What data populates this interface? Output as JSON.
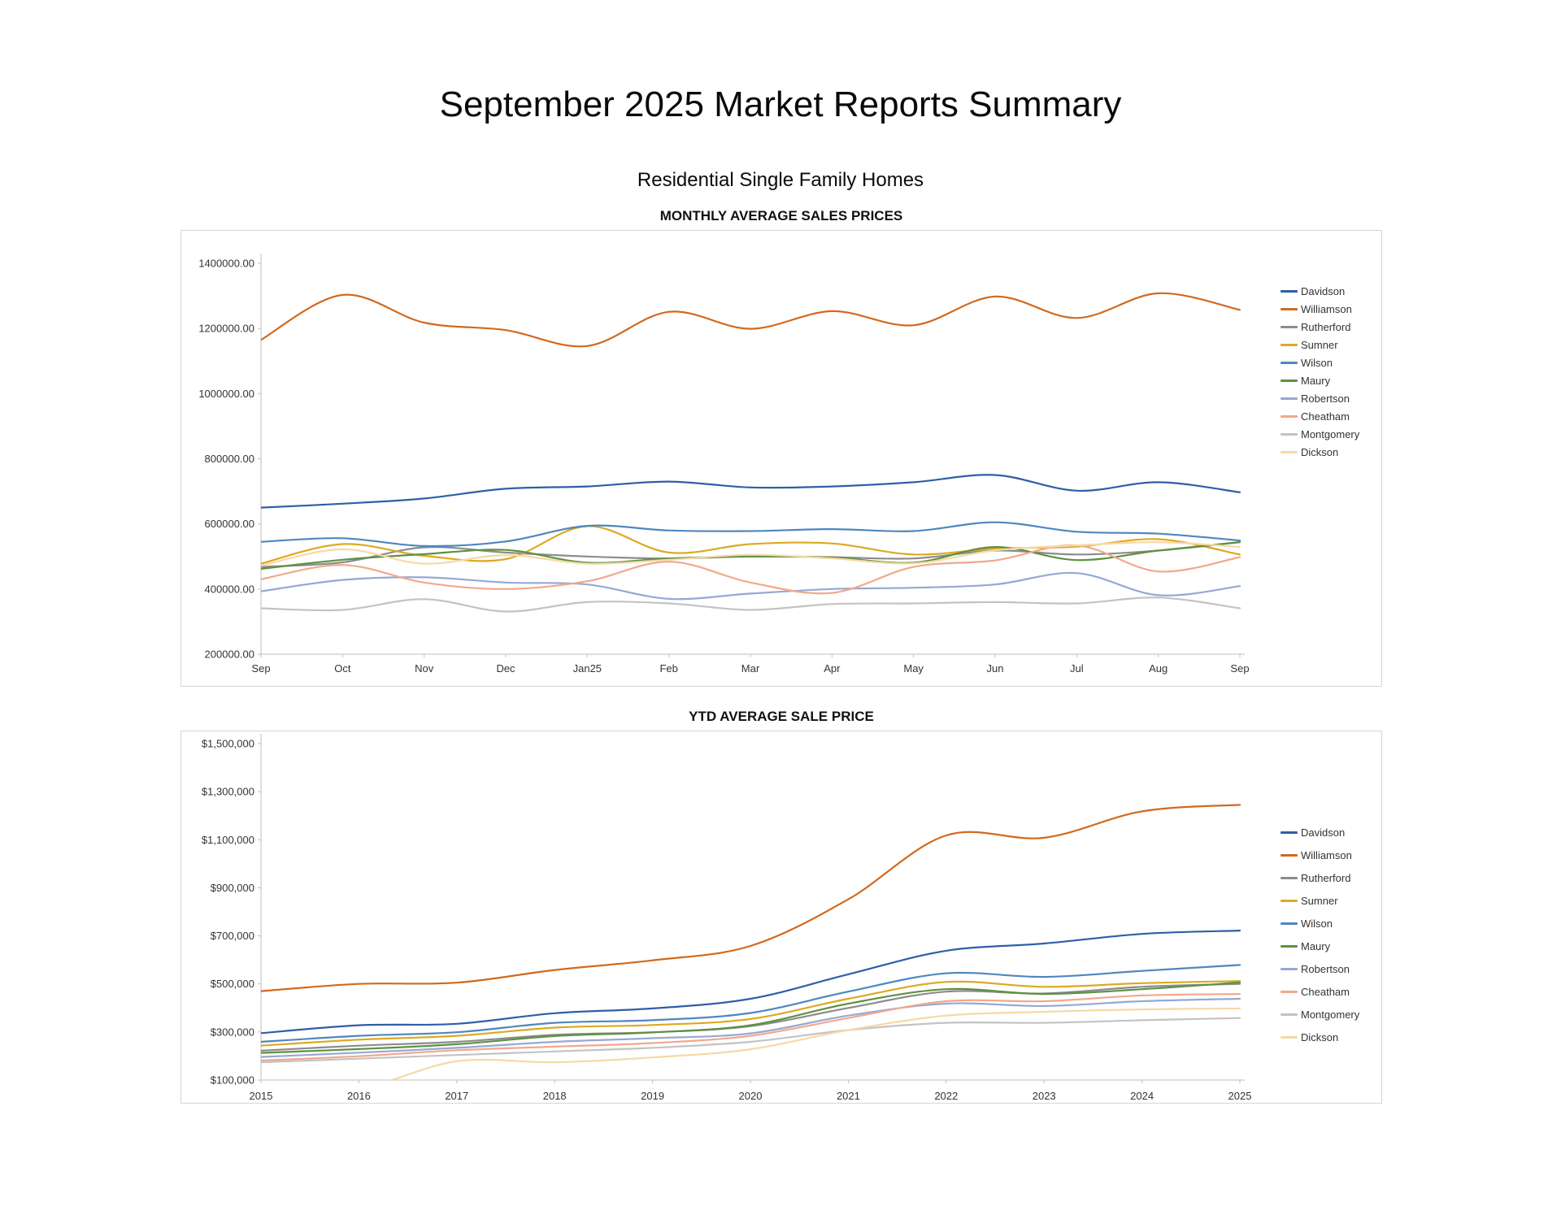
{
  "page": {
    "title": "September 2025 Market Reports Summary",
    "subtitle": "Residential Single Family Homes"
  },
  "chart_data": [
    {
      "type": "line",
      "title": "MONTHLY AVERAGE SALES PRICES",
      "categories": [
        "Sep",
        "Oct",
        "Nov",
        "Dec",
        "Jan25",
        "Feb",
        "Mar",
        "Apr",
        "May",
        "Jun",
        "Jul",
        "Aug",
        "Sep"
      ],
      "ylim": [
        200000,
        1400000
      ],
      "ytick_step": 200000,
      "ytick_format": "plain_2dp",
      "grid": false,
      "legend_position": "right",
      "series": [
        {
          "name": "Davidson",
          "color": "#2E5FA7",
          "values": [
            650000,
            662000,
            678000,
            708000,
            715000,
            730000,
            712000,
            715000,
            728000,
            750000,
            702000,
            728000,
            697000
          ]
        },
        {
          "name": "Williamson",
          "color": "#D2691E",
          "values": [
            1165000,
            1303000,
            1218000,
            1195000,
            1146000,
            1251000,
            1199000,
            1253000,
            1210000,
            1298000,
            1232000,
            1308000,
            1257000
          ]
        },
        {
          "name": "Rutherford",
          "color": "#8C8C8C",
          "values": [
            468000,
            482000,
            528000,
            512000,
            500000,
            494000,
            500000,
            498000,
            494000,
            518000,
            506000,
            518000,
            544000
          ]
        },
        {
          "name": "Sumner",
          "color": "#DDA921",
          "values": [
            478000,
            538000,
            502000,
            492000,
            593000,
            512000,
            538000,
            540000,
            506000,
            524000,
            530000,
            553000,
            506000
          ]
        },
        {
          "name": "Wilson",
          "color": "#4E87C0",
          "values": [
            545000,
            556000,
            532000,
            546000,
            594000,
            580000,
            578000,
            584000,
            578000,
            605000,
            576000,
            570000,
            549000
          ]
        },
        {
          "name": "Maury",
          "color": "#5E9142",
          "values": [
            462000,
            490000,
            507000,
            520000,
            481000,
            494000,
            500000,
            497000,
            481000,
            529000,
            489000,
            518000,
            544000
          ]
        },
        {
          "name": "Robertson",
          "color": "#96A9D3",
          "values": [
            393000,
            428000,
            436000,
            420000,
            414000,
            370000,
            386000,
            400000,
            404000,
            414000,
            449000,
            381000,
            409000
          ]
        },
        {
          "name": "Cheatham",
          "color": "#F2A88C",
          "values": [
            430000,
            474000,
            420000,
            400000,
            424000,
            484000,
            420000,
            388000,
            468000,
            488000,
            534000,
            454000,
            498000
          ]
        },
        {
          "name": "Montgomery",
          "color": "#C3C3C3",
          "values": [
            341000,
            336000,
            369000,
            331000,
            360000,
            356000,
            336000,
            354000,
            356000,
            360000,
            356000,
            374000,
            341000
          ]
        },
        {
          "name": "Dickson",
          "color": "#F6D9A4",
          "values": [
            472000,
            522000,
            478000,
            504000,
            478000,
            490000,
            505000,
            494000,
            479000,
            519000,
            534000,
            544000,
            529000
          ]
        }
      ]
    },
    {
      "type": "line",
      "title": "YTD AVERAGE SALE PRICE",
      "categories": [
        "2015",
        "2016",
        "2017",
        "2018",
        "2019",
        "2020",
        "2021",
        "2022",
        "2023",
        "2024",
        "2025"
      ],
      "ylim": [
        100000,
        1500000
      ],
      "ytick_step": 200000,
      "ytick_format": "currency",
      "grid": false,
      "legend_position": "right",
      "series": [
        {
          "name": "Davidson",
          "color": "#2E5FA7",
          "values": [
            295000,
            328000,
            334000,
            378000,
            398000,
            438000,
            540000,
            638000,
            668000,
            708000,
            722000
          ]
        },
        {
          "name": "Williamson",
          "color": "#D2691E",
          "values": [
            470000,
            500000,
            505000,
            558000,
            598000,
            658000,
            852000,
            1118000,
            1108000,
            1218000,
            1245000
          ]
        },
        {
          "name": "Rutherford",
          "color": "#8C8C8C",
          "values": [
            222000,
            243000,
            259000,
            288000,
            299000,
            324000,
            400000,
            468000,
            460000,
            488000,
            500000
          ]
        },
        {
          "name": "Sumner",
          "color": "#DDA921",
          "values": [
            243000,
            268000,
            284000,
            318000,
            329000,
            354000,
            438000,
            508000,
            488000,
            503000,
            512000
          ]
        },
        {
          "name": "Wilson",
          "color": "#4E87C0",
          "values": [
            259000,
            284000,
            299000,
            338000,
            349000,
            379000,
            468000,
            544000,
            529000,
            554000,
            579000
          ]
        },
        {
          "name": "Maury",
          "color": "#5E9142",
          "values": [
            213000,
            229000,
            249000,
            283000,
            298000,
            328000,
            418000,
            478000,
            458000,
            478000,
            506000
          ]
        },
        {
          "name": "Robertson",
          "color": "#96A9D3",
          "values": [
            196000,
            214000,
            234000,
            259000,
            274000,
            294000,
            368000,
            418000,
            408000,
            428000,
            438000
          ]
        },
        {
          "name": "Cheatham",
          "color": "#F2A88C",
          "values": [
            181000,
            199000,
            224000,
            239000,
            254000,
            284000,
            358000,
            428000,
            428000,
            452000,
            458000
          ]
        },
        {
          "name": "Montgomery",
          "color": "#C3C3C3",
          "values": [
            174000,
            189000,
            204000,
            219000,
            234000,
            259000,
            308000,
            338000,
            338000,
            349000,
            358000
          ]
        },
        {
          "name": "Dickson",
          "color": "#F6D9A4",
          "values": [
            55000,
            65000,
            178000,
            174000,
            194000,
            228000,
            308000,
            368000,
            384000,
            394000,
            398000
          ]
        }
      ]
    }
  ]
}
